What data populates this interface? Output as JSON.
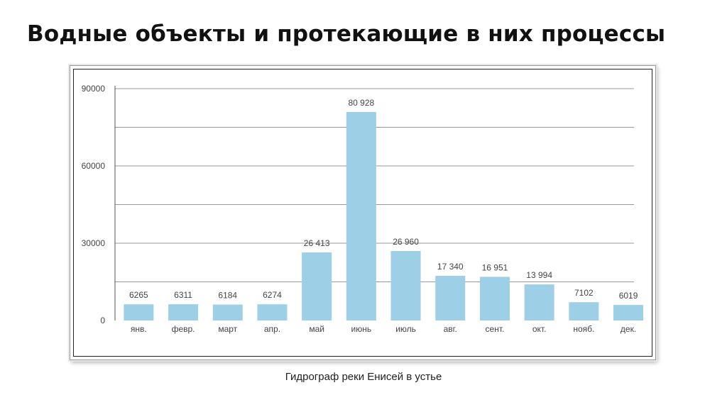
{
  "slide": {
    "title": "Водные объекты и протекающие в них процессы",
    "caption": "Гидрограф реки Енисей в устье"
  },
  "colors": {
    "bar": "#9dcfe6",
    "grid": "#999999",
    "axis": "#555555"
  },
  "chart_data": {
    "type": "bar",
    "categories": [
      "янв.",
      "февр.",
      "март",
      "апр.",
      "май",
      "июнь",
      "июль",
      "авг.",
      "сент.",
      "окт.",
      "нояб.",
      "дек."
    ],
    "values": [
      6265,
      6311,
      6184,
      6274,
      26413,
      80928,
      26960,
      17340,
      16951,
      13994,
      7102,
      6019
    ],
    "value_labels": [
      "6265",
      "6311",
      "6184",
      "6274",
      "26 413",
      "80 928",
      "26 960",
      "17 340",
      "16 951",
      "13 994",
      "7102",
      "6019"
    ],
    "yticks": [
      0,
      30000,
      60000,
      90000
    ],
    "ytick_labels": [
      "0",
      "30000",
      "60000",
      "90000"
    ],
    "ylim": [
      0,
      90000
    ],
    "grid": true,
    "title": "",
    "xlabel": "",
    "ylabel": ""
  }
}
